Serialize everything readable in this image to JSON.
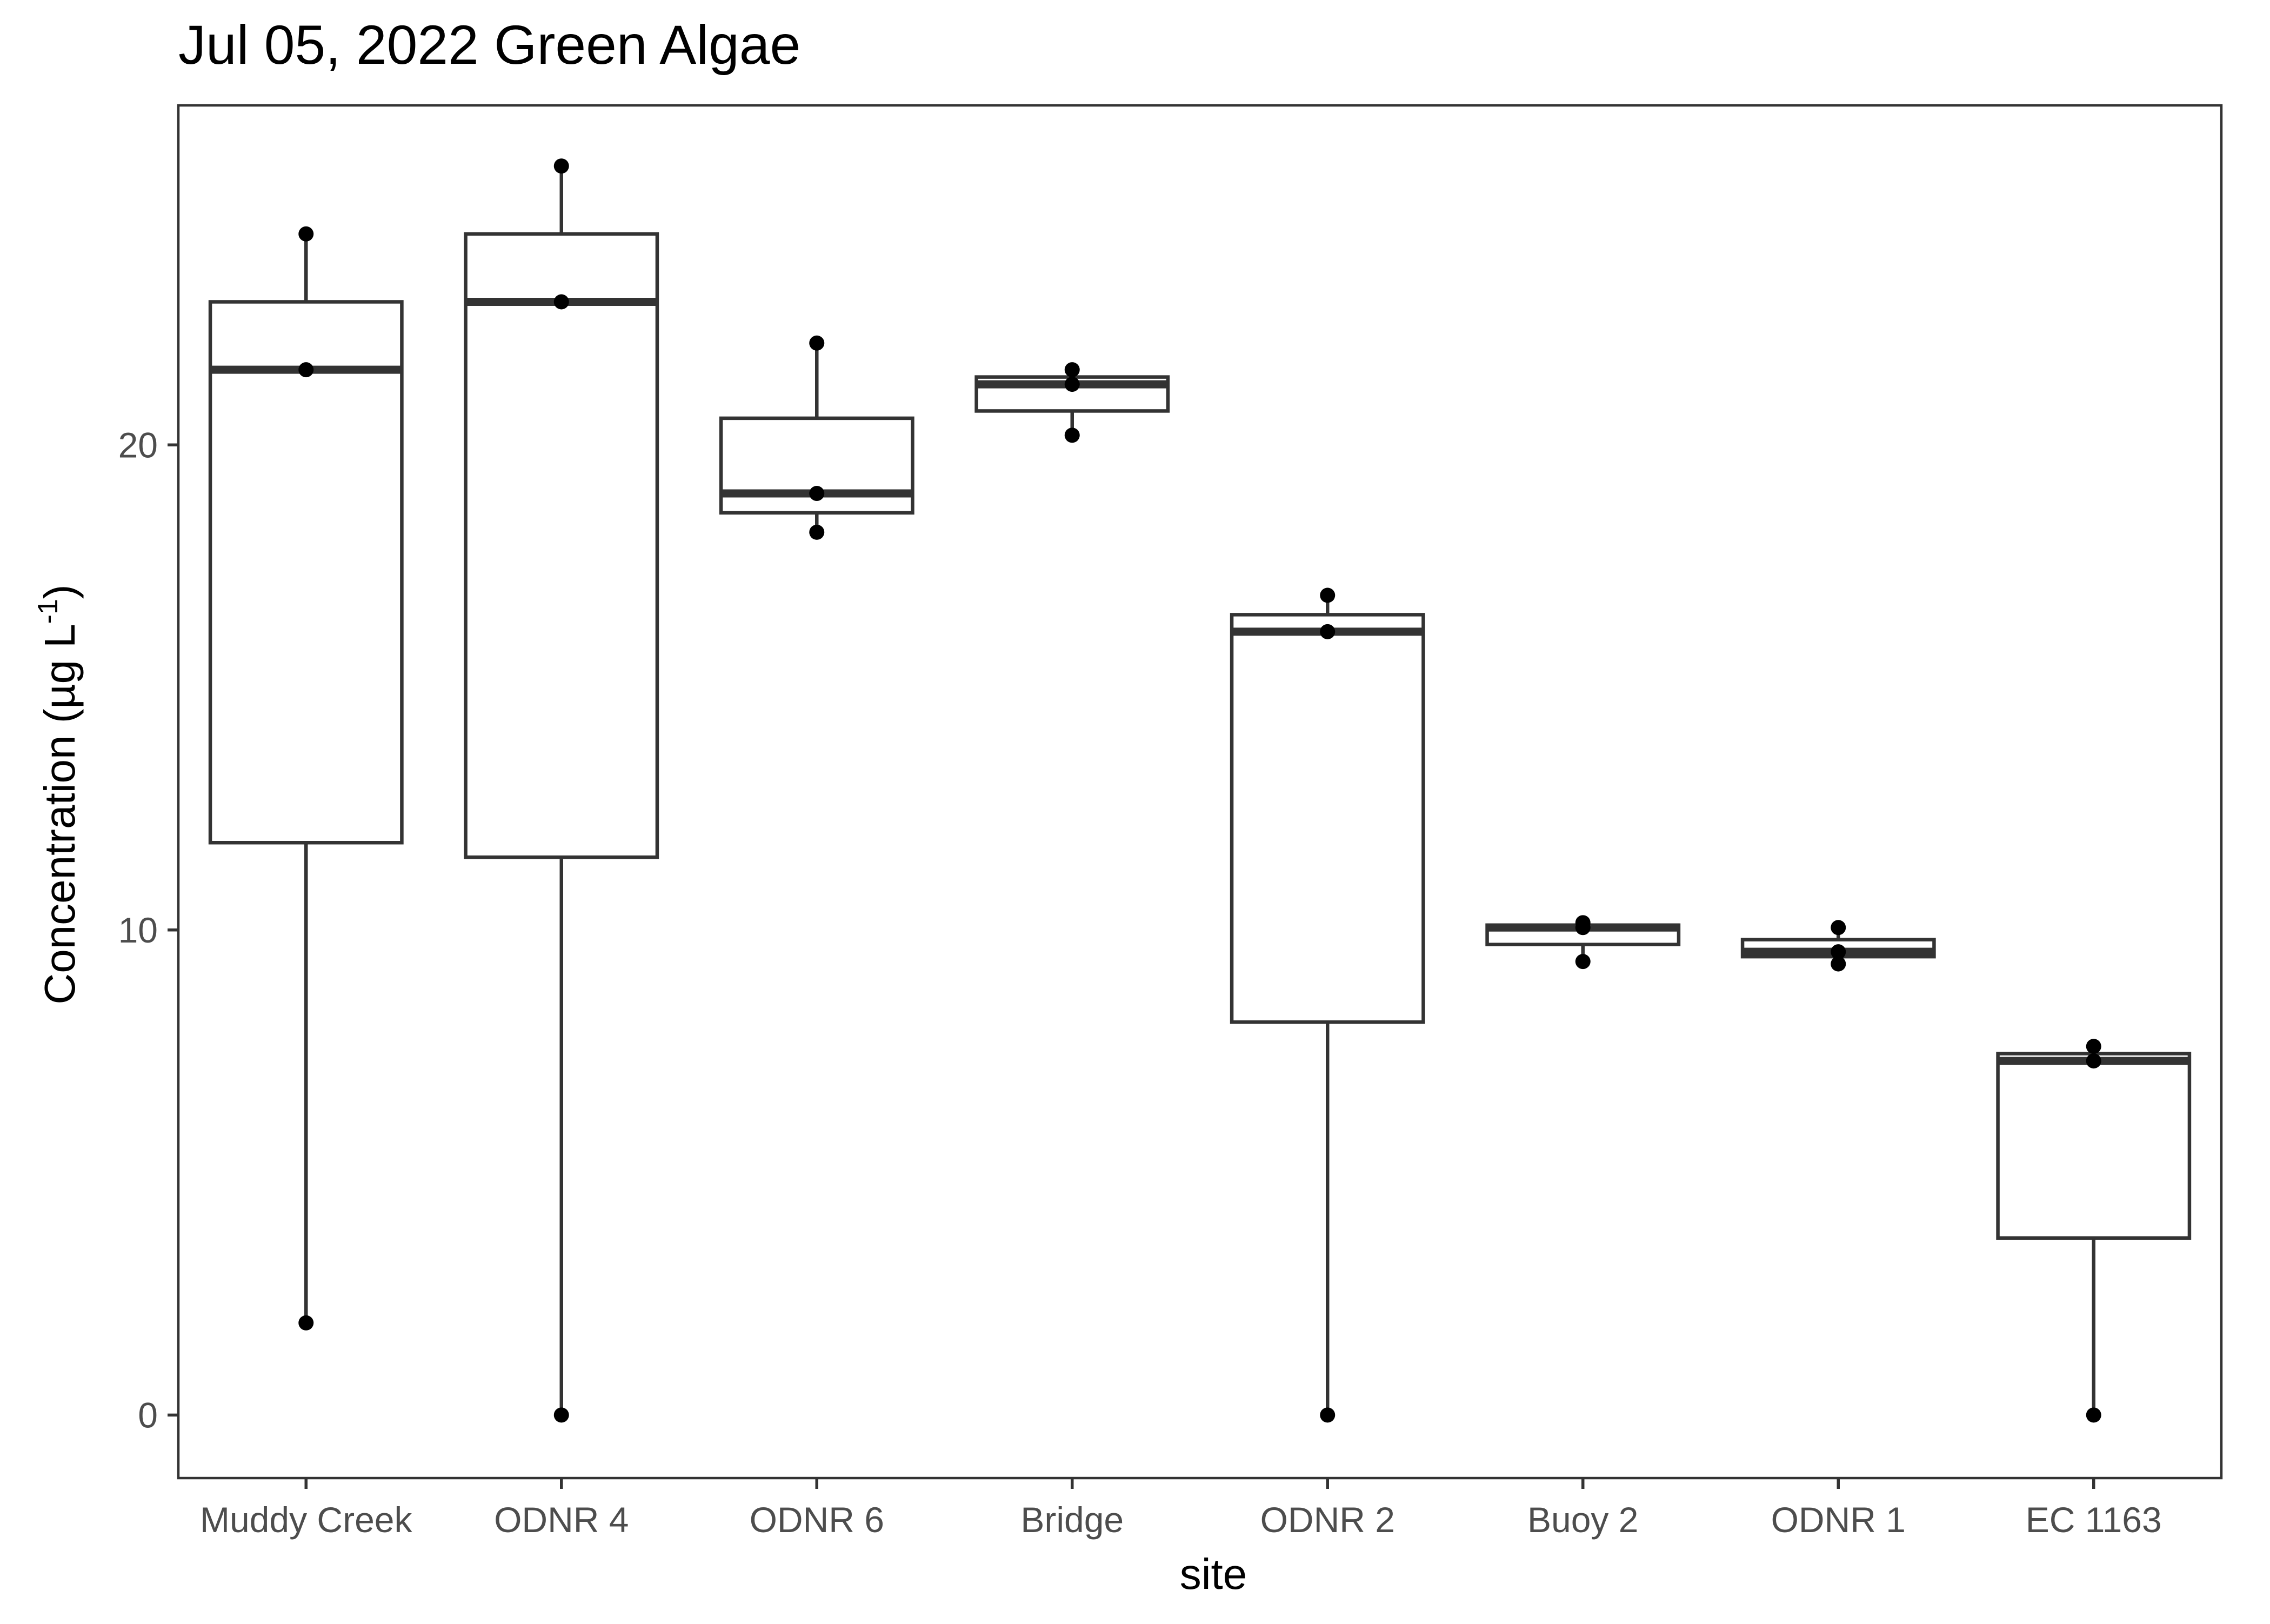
{
  "chart_data": {
    "type": "box",
    "title": "Jul 05, 2022 Green Algae",
    "xlabel": "site",
    "ylabel_text": "Concentration (µg L",
    "ylabel_superscript": "-1",
    "ylabel_close": ")",
    "ylim": [
      -1.3,
      27.0
    ],
    "yticks": [
      0,
      10,
      20
    ],
    "grid": false,
    "theme": "white background with black panel border",
    "colors": {
      "box_line": "#333333",
      "box_fill": "#ffffff",
      "point": "#000000",
      "tick_label": "#4d4d4d"
    },
    "categories": [
      "Muddy Creek",
      "ODNR 4",
      "ODNR 6",
      "Bridge",
      "ODNR 2",
      "Buoy 2",
      "ODNR 1",
      "EC 1163"
    ],
    "boxes": [
      {
        "site": "Muddy Creek",
        "lower_whisker": 1.9,
        "q1": 11.8,
        "median": 21.55,
        "q3": 22.95,
        "upper_whisker": 24.35
      },
      {
        "site": "ODNR 4",
        "lower_whisker": 0.0,
        "q1": 11.5,
        "median": 22.95,
        "q3": 24.35,
        "upper_whisker": 25.75
      },
      {
        "site": "ODNR 6",
        "lower_whisker": 18.2,
        "q1": 18.6,
        "median": 19.0,
        "q3": 20.55,
        "upper_whisker": 22.1
      },
      {
        "site": "Bridge",
        "lower_whisker": 20.2,
        "q1": 20.7,
        "median": 21.25,
        "q3": 21.4,
        "upper_whisker": 21.55
      },
      {
        "site": "ODNR 2",
        "lower_whisker": 0.0,
        "q1": 8.1,
        "median": 16.15,
        "q3": 16.5,
        "upper_whisker": 16.9
      },
      {
        "site": "Buoy 2",
        "lower_whisker": 9.35,
        "q1": 9.7,
        "median": 10.05,
        "q3": 10.1,
        "upper_whisker": 10.15
      },
      {
        "site": "ODNR 1",
        "lower_whisker": 9.3,
        "q1": 9.45,
        "median": 9.55,
        "q3": 9.8,
        "upper_whisker": 10.05
      },
      {
        "site": "EC 1163",
        "lower_whisker": 0.0,
        "q1": 3.65,
        "median": 7.3,
        "q3": 7.45,
        "upper_whisker": 7.6
      }
    ],
    "points": [
      {
        "site": "Muddy Creek",
        "values": [
          1.9,
          21.55,
          24.35
        ]
      },
      {
        "site": "ODNR 4",
        "values": [
          0.0,
          22.95,
          25.75
        ]
      },
      {
        "site": "ODNR 6",
        "values": [
          18.2,
          19.0,
          22.1
        ]
      },
      {
        "site": "Bridge",
        "values": [
          20.2,
          21.25,
          21.55
        ]
      },
      {
        "site": "ODNR 2",
        "values": [
          0.0,
          16.15,
          16.9
        ]
      },
      {
        "site": "Buoy 2",
        "values": [
          9.35,
          10.05,
          10.15
        ]
      },
      {
        "site": "ODNR 1",
        "values": [
          9.3,
          9.55,
          10.05
        ]
      },
      {
        "site": "EC 1163",
        "values": [
          0.0,
          7.3,
          7.6
        ]
      }
    ]
  }
}
